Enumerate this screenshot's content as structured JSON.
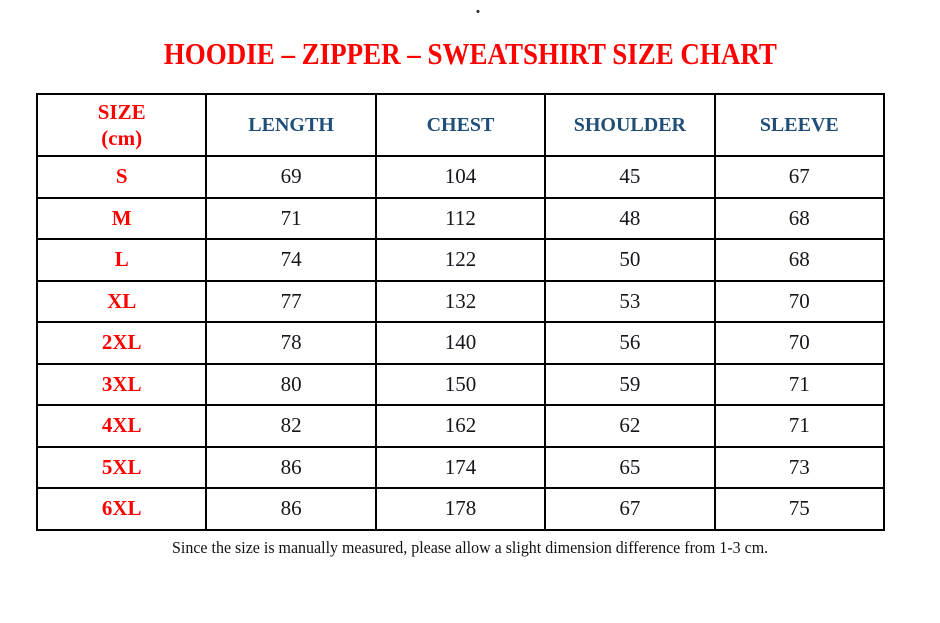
{
  "page": {
    "title": "HOODIE – ZIPPER – SWEATSHIRT SIZE CHART",
    "stray_dot": ".",
    "footnote": "Since the size is manually measured, please allow a slight dimension difference from 1-3 cm."
  },
  "colors": {
    "title_red": "#FE0000",
    "size_label_red": "#FE0000",
    "header_navy": "#1F4E79",
    "value_text": "#16161D",
    "border": "#000000",
    "background": "#FFFFFF"
  },
  "table": {
    "header": {
      "size_label": "SIZE",
      "size_unit": "(cm)",
      "columns": [
        "LENGTH",
        "CHEST",
        "SHOULDER",
        "SLEEVE"
      ]
    },
    "rows": [
      {
        "size": "S",
        "length": "69",
        "chest": "104",
        "shoulder": "45",
        "sleeve": "67"
      },
      {
        "size": "M",
        "length": "71",
        "chest": "112",
        "shoulder": "48",
        "sleeve": "68"
      },
      {
        "size": "L",
        "length": "74",
        "chest": "122",
        "shoulder": "50",
        "sleeve": "68"
      },
      {
        "size": "XL",
        "length": "77",
        "chest": "132",
        "shoulder": "53",
        "sleeve": "70"
      },
      {
        "size": "2XL",
        "length": "78",
        "chest": "140",
        "shoulder": "56",
        "sleeve": "70"
      },
      {
        "size": "3XL",
        "length": "80",
        "chest": "150",
        "shoulder": "59",
        "sleeve": "71"
      },
      {
        "size": "4XL",
        "length": "82",
        "chest": "162",
        "shoulder": "62",
        "sleeve": "71"
      },
      {
        "size": "5XL",
        "length": "86",
        "chest": "174",
        "shoulder": "65",
        "sleeve": "73"
      },
      {
        "size": "6XL",
        "length": "86",
        "chest": "178",
        "shoulder": "67",
        "sleeve": "75"
      }
    ]
  },
  "chart_data": {
    "type": "table",
    "title": "HOODIE – ZIPPER – SWEATSHIRT SIZE CHART",
    "columns": [
      "SIZE (cm)",
      "LENGTH",
      "CHEST",
      "SHOULDER",
      "SLEEVE"
    ],
    "rows": [
      [
        "S",
        69,
        104,
        45,
        67
      ],
      [
        "M",
        71,
        112,
        48,
        68
      ],
      [
        "L",
        74,
        122,
        50,
        68
      ],
      [
        "XL",
        77,
        132,
        53,
        70
      ],
      [
        "2XL",
        78,
        140,
        56,
        70
      ],
      [
        "3XL",
        80,
        150,
        59,
        71
      ],
      [
        "4XL",
        82,
        162,
        62,
        71
      ],
      [
        "5XL",
        86,
        174,
        65,
        73
      ],
      [
        "6XL",
        86,
        178,
        67,
        75
      ]
    ],
    "note": "Since the size is manually measured, please allow a slight dimension difference from 1-3 cm.",
    "units": "cm"
  }
}
